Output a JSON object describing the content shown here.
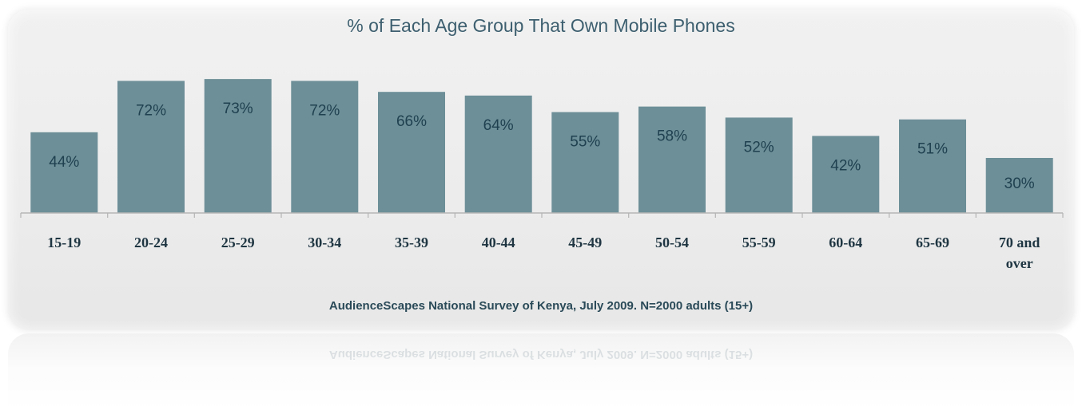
{
  "chart_data": {
    "type": "bar",
    "title": "% of Each Age Group That Own Mobile Phones",
    "categories": [
      "15-19",
      "20-24",
      "25-29",
      "30-34",
      "35-39",
      "40-44",
      "45-49",
      "50-54",
      "55-59",
      "60-64",
      "65-69",
      "70 and over"
    ],
    "category_lines": [
      [
        "15-19"
      ],
      [
        "20-24"
      ],
      [
        "25-29"
      ],
      [
        "30-34"
      ],
      [
        "35-39"
      ],
      [
        "40-44"
      ],
      [
        "45-49"
      ],
      [
        "50-54"
      ],
      [
        "55-59"
      ],
      [
        "60-64"
      ],
      [
        "65-69"
      ],
      [
        "70 and",
        "over"
      ]
    ],
    "values": [
      44,
      72,
      73,
      72,
      66,
      64,
      55,
      58,
      52,
      42,
      51,
      30
    ],
    "value_labels": [
      "44%",
      "72%",
      "73%",
      "72%",
      "66%",
      "64%",
      "55%",
      "58%",
      "52%",
      "42%",
      "51%",
      "30%"
    ],
    "ylim": [
      0,
      100
    ],
    "grid": false,
    "legend": "none",
    "source_note": "AudienceScapes National Survey of Kenya, July 2009. N=2000 adults (15+)",
    "colors": {
      "bar": "#6d8f98",
      "value_label": "#1f4150",
      "title": "#3d5f6f",
      "category_label": "#1f3642",
      "card": "#eeeeee"
    }
  }
}
